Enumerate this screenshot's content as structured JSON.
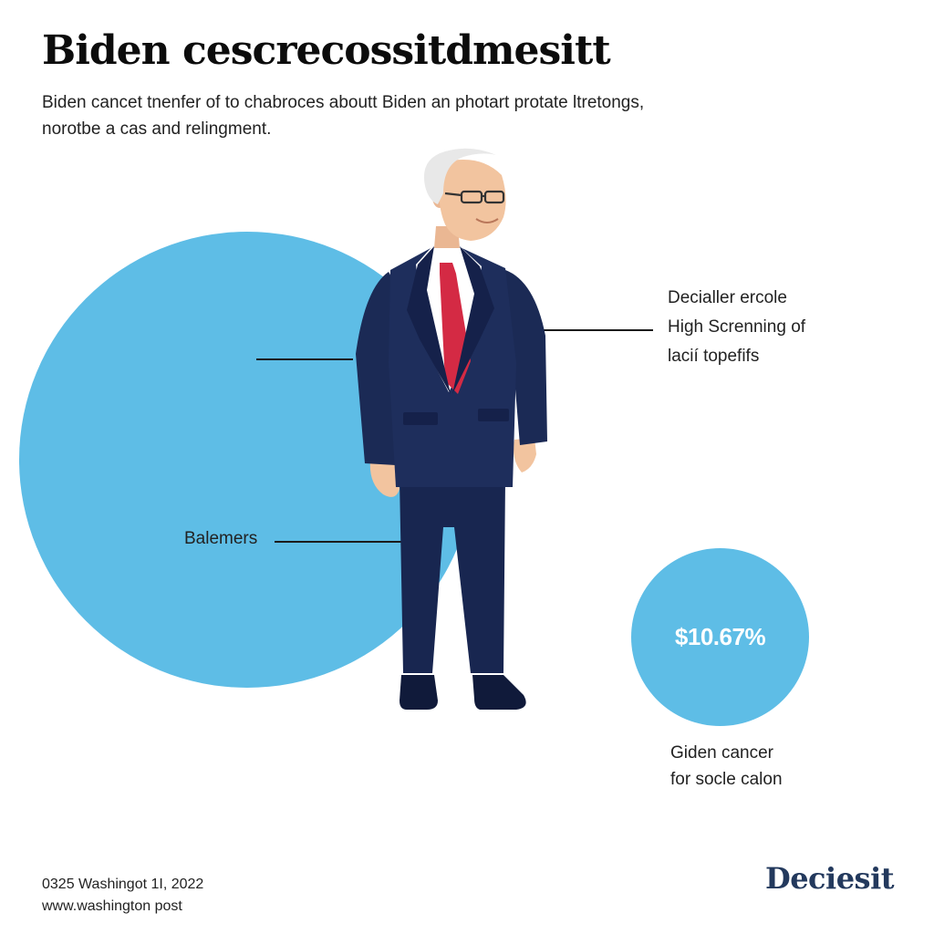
{
  "header": {
    "title": "Biden cescrecossitdmesitt",
    "subtitle": "Biden cancet tnenfer of to chabroces aboutt Biden an photart protate ltretongs, norotbe a cas and relingment."
  },
  "callouts": {
    "right_top": [
      "Decialler ercole",
      "High Screnning of",
      "lacií topefifs"
    ],
    "left_bottom": "Balemers",
    "stat_value": "$10.67%",
    "stat_caption": [
      "Giden cancer",
      "for socle calon"
    ]
  },
  "footer": {
    "line1": "0325 Washingot 1I, 2022",
    "line2": "www.washington post",
    "brand": "Deciesit"
  },
  "colors": {
    "circle": "#5ebde6",
    "suit": "#1b2a55",
    "tie": "#d42a44",
    "brand": "#23395d"
  }
}
